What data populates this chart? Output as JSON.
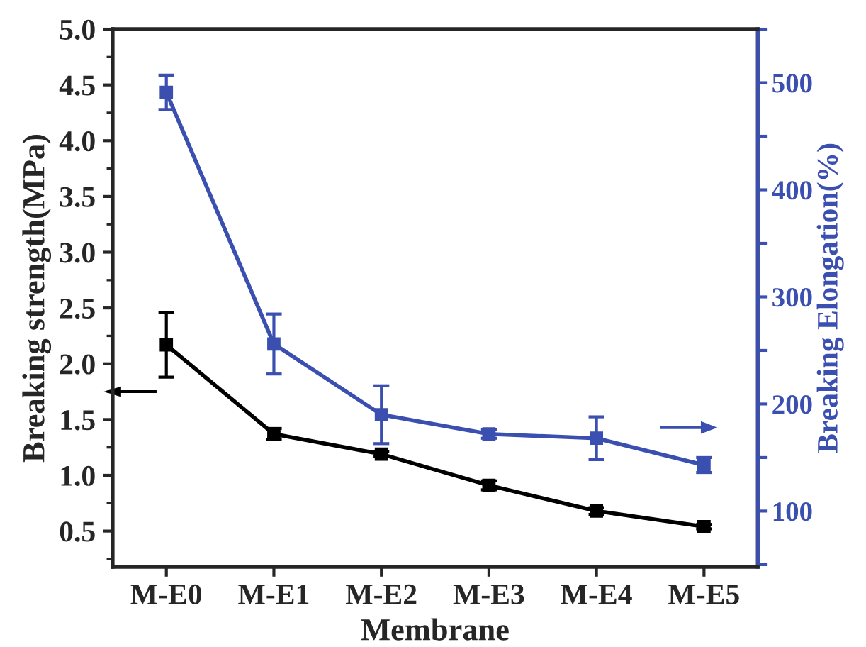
{
  "chart_data": {
    "type": "line",
    "xlabel": "Membrane",
    "ylabel": "Breaking strength(MPa)",
    "y2label": "Breaking Elongation(%)",
    "categories": [
      "M-E0",
      "M-E1",
      "M-E2",
      "M-E3",
      "M-E4",
      "M-E5"
    ],
    "series": [
      {
        "color": "#000000",
        "values": [
          2.17,
          1.37,
          1.19,
          0.91,
          0.68,
          0.54
        ],
        "errors": [
          0.29,
          0.05,
          0.02,
          0.04,
          0.03,
          0.02
        ]
      },
      {
        "color": "#3a4fb0",
        "axis": "y2",
        "values": [
          491,
          256,
          190,
          172,
          168,
          143
        ],
        "errors": [
          16,
          28,
          27,
          4,
          20,
          7
        ]
      }
    ],
    "ylim": [
      0.18,
      5.0
    ],
    "yticks": [
      0.5,
      {
        "value": 1,
        "label": "1.0"
      },
      1.5,
      {
        "value": 2,
        "label": "2.0"
      },
      2.5,
      {
        "value": 3,
        "label": "3.0"
      },
      3.5,
      {
        "value": 4,
        "label": "4.0"
      },
      4.5,
      {
        "value": 5,
        "label": "5.0"
      }
    ],
    "y2lim": [
      48,
      550
    ],
    "y2ticks": [
      100,
      200,
      300,
      400,
      500
    ],
    "marker": "square",
    "line_style": "solid",
    "grid": false,
    "legend": false
  }
}
